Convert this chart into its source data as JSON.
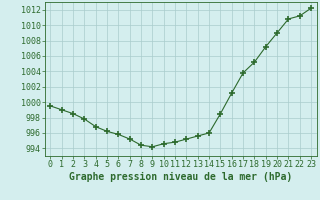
{
  "x": [
    0,
    1,
    2,
    3,
    4,
    5,
    6,
    7,
    8,
    9,
    10,
    11,
    12,
    13,
    14,
    15,
    16,
    17,
    18,
    19,
    20,
    21,
    22,
    23
  ],
  "y": [
    999.5,
    999.0,
    998.5,
    997.8,
    996.8,
    996.2,
    995.8,
    995.2,
    994.4,
    994.2,
    994.6,
    994.8,
    995.2,
    995.6,
    996.0,
    998.5,
    1001.2,
    1003.8,
    1005.2,
    1007.2,
    1009.0,
    1010.8,
    1011.2,
    1012.2
  ],
  "line_color": "#2d6a2d",
  "marker": "+",
  "marker_size": 4,
  "marker_linewidth": 1.2,
  "background_color": "#d4eeee",
  "grid_color": "#aacccc",
  "xlabel": "Graphe pression niveau de la mer (hPa)",
  "xlabel_fontsize": 7,
  "tick_fontsize": 6,
  "ylim": [
    993,
    1013
  ],
  "yticks": [
    994,
    996,
    998,
    1000,
    1002,
    1004,
    1006,
    1008,
    1010,
    1012
  ],
  "xlim": [
    -0.5,
    23.5
  ],
  "xticks": [
    0,
    1,
    2,
    3,
    4,
    5,
    6,
    7,
    8,
    9,
    10,
    11,
    12,
    13,
    14,
    15,
    16,
    17,
    18,
    19,
    20,
    21,
    22,
    23
  ]
}
